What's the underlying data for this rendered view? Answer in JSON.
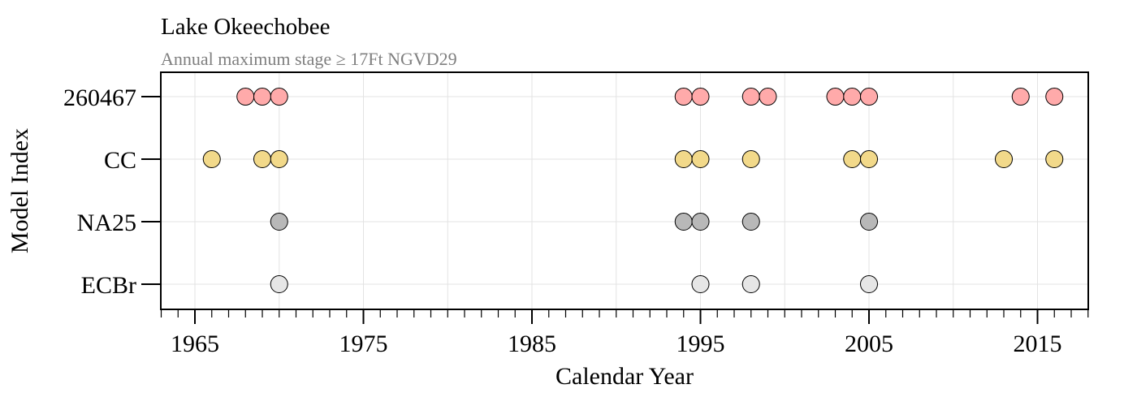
{
  "chart_data": {
    "type": "scatter",
    "title": "Lake Okeechobee",
    "subtitle": "Annual maximum stage ≥ 17Ft NGVD29",
    "xlabel": "Calendar Year",
    "ylabel": "Model Index",
    "xlim": [
      1963,
      2018
    ],
    "x_ticks_major": [
      1965,
      1975,
      1985,
      1995,
      2005,
      2015
    ],
    "categories": [
      "260467",
      "CC",
      "NA25",
      "ECBr"
    ],
    "grid": true,
    "series": [
      {
        "name": "260467",
        "color": "#ffaaaa",
        "x": [
          1968,
          1969,
          1970,
          1994,
          1995,
          1998,
          1999,
          2003,
          2004,
          2005,
          2014,
          2016
        ]
      },
      {
        "name": "CC",
        "color": "#f2d98a",
        "x": [
          1966,
          1969,
          1970,
          1994,
          1995,
          1998,
          2004,
          2005,
          2013,
          2016
        ]
      },
      {
        "name": "NA25",
        "color": "#b8b8b8",
        "x": [
          1970,
          1994,
          1995,
          1998,
          2005
        ]
      },
      {
        "name": "ECBr",
        "color": "#e6e6e6",
        "x": [
          1970,
          1995,
          1998,
          2005
        ]
      }
    ]
  }
}
